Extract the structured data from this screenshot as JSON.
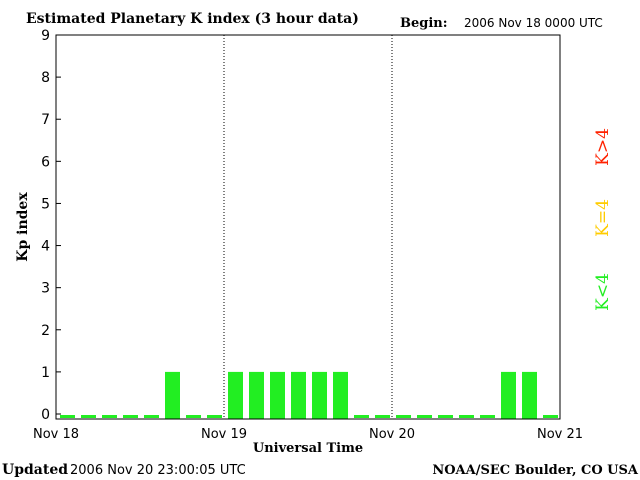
{
  "chart_data": {
    "type": "bar",
    "title": "Estimated Planetary K index (3 hour data)",
    "begin_label": "Begin:",
    "begin_value": "2006 Nov 18 0000 UTC",
    "ylabel": "Kp index",
    "xlabel": "Universal Time",
    "ylim": [
      0,
      9
    ],
    "y_ticks": [
      "0",
      "1",
      "2",
      "3",
      "4",
      "5",
      "6",
      "7",
      "8",
      "9"
    ],
    "x_range_days": [
      0,
      3
    ],
    "x_tick_labels": [
      "Nov 18",
      "Nov 19",
      "Nov 20",
      "Nov 21"
    ],
    "day_separators": [
      "Nov 19",
      "Nov 20"
    ],
    "grid": false,
    "bar_interval_hours": 3,
    "values": [
      0,
      0,
      0,
      0,
      0,
      1,
      0,
      0,
      1,
      1,
      1,
      1,
      1,
      1,
      0,
      0,
      0,
      0,
      0,
      0,
      0,
      1,
      1,
      0
    ],
    "bar_color": "#22ee22",
    "legend": [
      {
        "label": "K<4",
        "color": "#22ee22"
      },
      {
        "label": "K=4",
        "color": "#ffcc00"
      },
      {
        "label": "K>4",
        "color": "#ff2200"
      }
    ],
    "legend_placement": "right"
  },
  "footer": {
    "updated_label": "Updated",
    "updated_value": "2006 Nov 20 23:00:05 UTC",
    "source": "NOAA/SEC Boulder, CO USA"
  }
}
